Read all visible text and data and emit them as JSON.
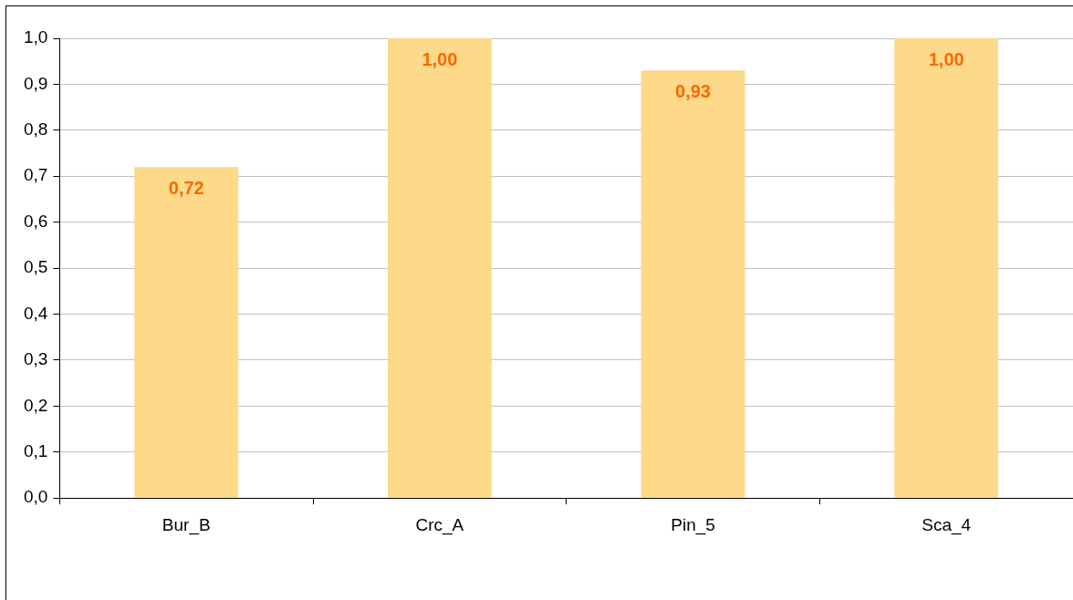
{
  "chart_data": {
    "type": "bar",
    "categories": [
      "Bur_B",
      "Crc_A",
      "Pin_5",
      "Sca_4"
    ],
    "values": [
      0.72,
      1.0,
      0.93,
      1.0
    ],
    "value_labels": [
      "0,72",
      "1,00",
      "0,93",
      "1,00"
    ],
    "color": "#fdd98a",
    "ylim": [
      0,
      1
    ],
    "yticks": [
      {
        "value": 0,
        "label": "0,0"
      },
      {
        "value": 0.1,
        "label": "0,1"
      },
      {
        "value": 0.2,
        "label": "0,2"
      },
      {
        "value": 0.3,
        "label": "0,3"
      },
      {
        "value": 0.4,
        "label": "0,4"
      },
      {
        "value": 0.5,
        "label": "0,5"
      },
      {
        "value": 0.6,
        "label": "0,6"
      },
      {
        "value": 0.7,
        "label": "0,7"
      },
      {
        "value": 0.8,
        "label": "0,8"
      },
      {
        "value": 0.9,
        "label": "0,9"
      },
      {
        "value": 1,
        "label": "1,0"
      }
    ],
    "grid": "y"
  }
}
